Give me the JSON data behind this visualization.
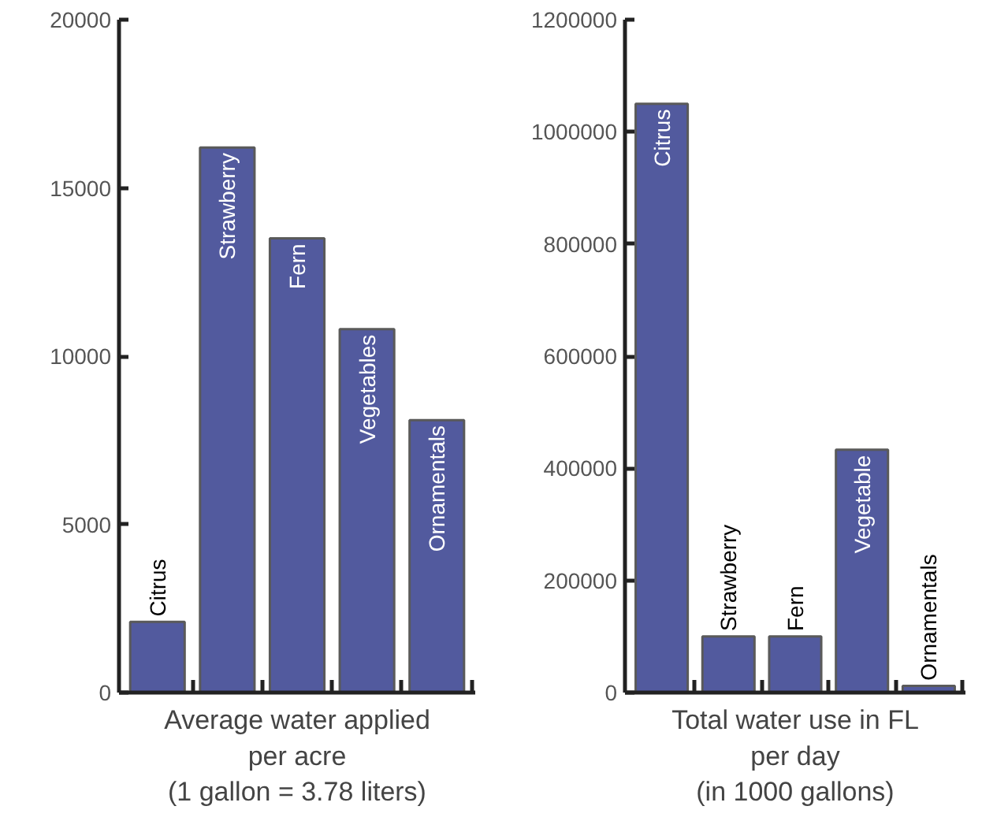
{
  "chart_data": [
    {
      "type": "bar",
      "xlabel": "Average water applied\nper acre\n(1 gallon = 3.78 liters)",
      "categories": [
        "Citrus",
        "Strawberry",
        "Fern",
        "Vegetables",
        "Ornamentals"
      ],
      "values": [
        2100,
        16200,
        13500,
        10800,
        8100
      ],
      "color": "#525a9e",
      "ylim": [
        0,
        20000
      ],
      "yticks": [
        0,
        5000,
        10000,
        15000,
        20000
      ],
      "grid": false,
      "tick_labels": "y"
    },
    {
      "type": "bar",
      "xlabel": "Total water use in FL\nper day\n(in 1000 gallons)",
      "categories": [
        "Citrus",
        "Strawberry",
        "Fern",
        "Vegetable",
        "Ornamentals"
      ],
      "values": [
        1050000,
        100000,
        100000,
        433000,
        12000
      ],
      "color": "#525a9e",
      "ylim": [
        0,
        1200000
      ],
      "yticks": [
        0,
        200000,
        400000,
        600000,
        800000,
        1000000,
        1200000
      ],
      "grid": false,
      "tick_labels": "y"
    }
  ]
}
